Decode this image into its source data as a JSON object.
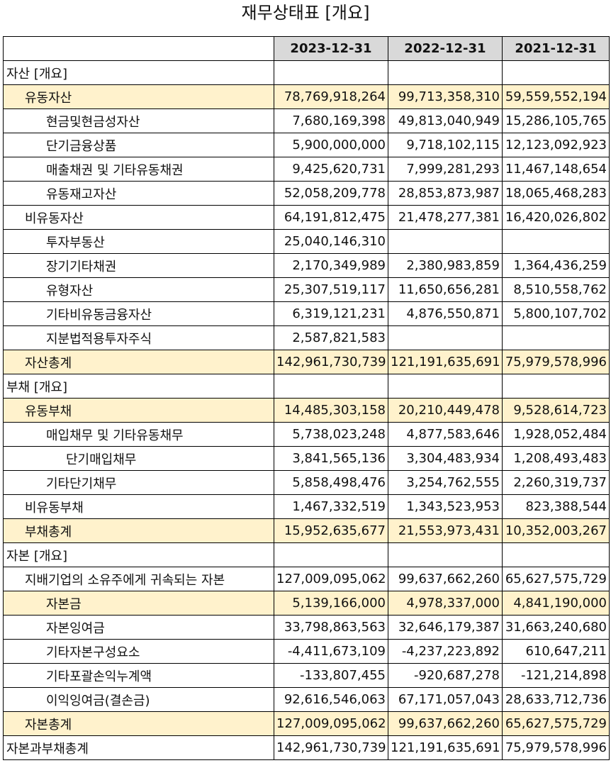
{
  "title": "재무상태표 [개요]",
  "columns": [
    "2023-12-31",
    "2022-12-31",
    "2021-12-31"
  ],
  "highlight_color": "#fff2cc",
  "header_color": "#d9d9d9",
  "rows": [
    {
      "label": "자산 [개요]",
      "level": 0,
      "highlight": false,
      "values": [
        "",
        "",
        ""
      ]
    },
    {
      "label": "유동자산",
      "level": 1,
      "highlight": true,
      "values": [
        "78,769,918,264",
        "99,713,358,310",
        "59,559,552,194"
      ]
    },
    {
      "label": "현금및현금성자산",
      "level": 2,
      "highlight": false,
      "values": [
        "7,680,169,398",
        "49,813,040,949",
        "15,286,105,765"
      ]
    },
    {
      "label": "단기금융상품",
      "level": 2,
      "highlight": false,
      "values": [
        "5,900,000,000",
        "9,718,102,115",
        "12,123,092,923"
      ]
    },
    {
      "label": "매출채권 및 기타유동채권",
      "level": 2,
      "highlight": false,
      "values": [
        "9,425,620,731",
        "7,999,281,293",
        "11,467,148,654"
      ]
    },
    {
      "label": "유동재고자산",
      "level": 2,
      "highlight": false,
      "values": [
        "52,058,209,778",
        "28,853,873,987",
        "18,065,468,283"
      ]
    },
    {
      "label": "비유동자산",
      "level": 1,
      "highlight": false,
      "values": [
        "64,191,812,475",
        "21,478,277,381",
        "16,420,026,802"
      ]
    },
    {
      "label": "투자부동산",
      "level": 2,
      "highlight": false,
      "values": [
        "25,040,146,310",
        "",
        ""
      ]
    },
    {
      "label": "장기기타채권",
      "level": 2,
      "highlight": false,
      "values": [
        "2,170,349,989",
        "2,380,983,859",
        "1,364,436,259"
      ]
    },
    {
      "label": "유형자산",
      "level": 2,
      "highlight": false,
      "values": [
        "25,307,519,117",
        "11,650,656,281",
        "8,510,558,762"
      ]
    },
    {
      "label": "기타비유동금융자산",
      "level": 2,
      "highlight": false,
      "values": [
        "6,319,121,231",
        "4,876,550,871",
        "5,800,107,702"
      ]
    },
    {
      "label": "지분법적용투자주식",
      "level": 2,
      "highlight": false,
      "values": [
        "2,587,821,583",
        "",
        ""
      ]
    },
    {
      "label": "자산총계",
      "level": 1,
      "highlight": true,
      "values": [
        "142,961,730,739",
        "121,191,635,691",
        "75,979,578,996"
      ]
    },
    {
      "label": "부채 [개요]",
      "level": 0,
      "highlight": false,
      "values": [
        "",
        "",
        ""
      ]
    },
    {
      "label": "유동부채",
      "level": 1,
      "highlight": true,
      "values": [
        "14,485,303,158",
        "20,210,449,478",
        "9,528,614,723"
      ]
    },
    {
      "label": "매입채무 및 기타유동채무",
      "level": 2,
      "highlight": false,
      "values": [
        "5,738,023,248",
        "4,877,583,646",
        "1,928,052,484"
      ]
    },
    {
      "label": "단기매입채무",
      "level": 3,
      "highlight": false,
      "values": [
        "3,841,565,136",
        "3,304,483,934",
        "1,208,493,483"
      ]
    },
    {
      "label": "기타단기채무",
      "level": 2,
      "highlight": false,
      "values": [
        "5,858,498,476",
        "3,254,762,555",
        "2,260,319,737"
      ]
    },
    {
      "label": "비유동부채",
      "level": 1,
      "highlight": false,
      "values": [
        "1,467,332,519",
        "1,343,523,953",
        "823,388,544"
      ]
    },
    {
      "label": "부채총계",
      "level": 1,
      "highlight": true,
      "values": [
        "15,952,635,677",
        "21,553,973,431",
        "10,352,003,267"
      ]
    },
    {
      "label": "자본 [개요]",
      "level": 0,
      "highlight": false,
      "values": [
        "",
        "",
        ""
      ]
    },
    {
      "label": "지배기업의 소유주에게 귀속되는 자본",
      "level": 1,
      "highlight": false,
      "values": [
        "127,009,095,062",
        "99,637,662,260",
        "65,627,575,729"
      ]
    },
    {
      "label": "자본금",
      "level": 2,
      "highlight": true,
      "values": [
        "5,139,166,000",
        "4,978,337,000",
        "4,841,190,000"
      ]
    },
    {
      "label": "자본잉여금",
      "level": 2,
      "highlight": false,
      "values": [
        "33,798,863,563",
        "32,646,179,387",
        "31,663,240,680"
      ]
    },
    {
      "label": "기타자본구성요소",
      "level": 2,
      "highlight": false,
      "values": [
        "-4,411,673,109",
        "-4,237,223,892",
        "610,647,211"
      ]
    },
    {
      "label": "기타포괄손익누계액",
      "level": 2,
      "highlight": false,
      "values": [
        "-133,807,455",
        "-920,687,278",
        "-121,214,898"
      ]
    },
    {
      "label": "이익잉여금(결손금)",
      "level": 2,
      "highlight": false,
      "values": [
        "92,616,546,063",
        "67,171,057,043",
        "28,633,712,736"
      ]
    },
    {
      "label": "자본총계",
      "level": 1,
      "highlight": true,
      "values": [
        "127,009,095,062",
        "99,637,662,260",
        "65,627,575,729"
      ]
    },
    {
      "label": "자본과부채총계",
      "level": 0,
      "highlight": false,
      "values": [
        "142,961,730,739",
        "121,191,635,691",
        "75,979,578,996"
      ]
    }
  ]
}
